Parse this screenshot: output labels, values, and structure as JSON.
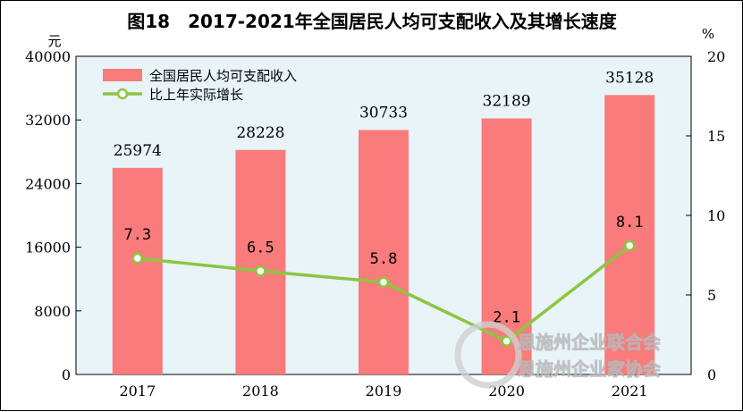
{
  "title": "图18　2017-2021年全国居民人均可支配收入及其增长速度",
  "watermark": {
    "line1": "恩施州企业联合会",
    "line2": "恩施州企业家协会"
  },
  "colors": {
    "bar": "#f97b7b",
    "line": "#8cc63f",
    "plot_bg": "#e8f4f8"
  },
  "chart_data": {
    "type": "bar",
    "categories": [
      "2017",
      "2018",
      "2019",
      "2020",
      "2021"
    ],
    "series": [
      {
        "name": "全国居民人均可支配收入",
        "type": "bar",
        "axis": "left",
        "values": [
          25974,
          28228,
          30733,
          32189,
          35128
        ]
      },
      {
        "name": "比上年实际增长",
        "type": "line",
        "axis": "right",
        "values": [
          7.3,
          6.5,
          5.8,
          2.1,
          8.1
        ],
        "labels": [
          "7.3",
          "6.5",
          "5.8",
          "2.1",
          "8.1"
        ]
      }
    ],
    "y_left": {
      "unit": "元",
      "range": [
        0,
        40000
      ],
      "ticks": [
        "0",
        "8000",
        "16000",
        "24000",
        "32000",
        "40000"
      ]
    },
    "y_right": {
      "unit": "%",
      "range": [
        0,
        20
      ],
      "ticks": [
        "0",
        "5",
        "10",
        "15",
        "20"
      ]
    },
    "legend_position": "top-left"
  }
}
